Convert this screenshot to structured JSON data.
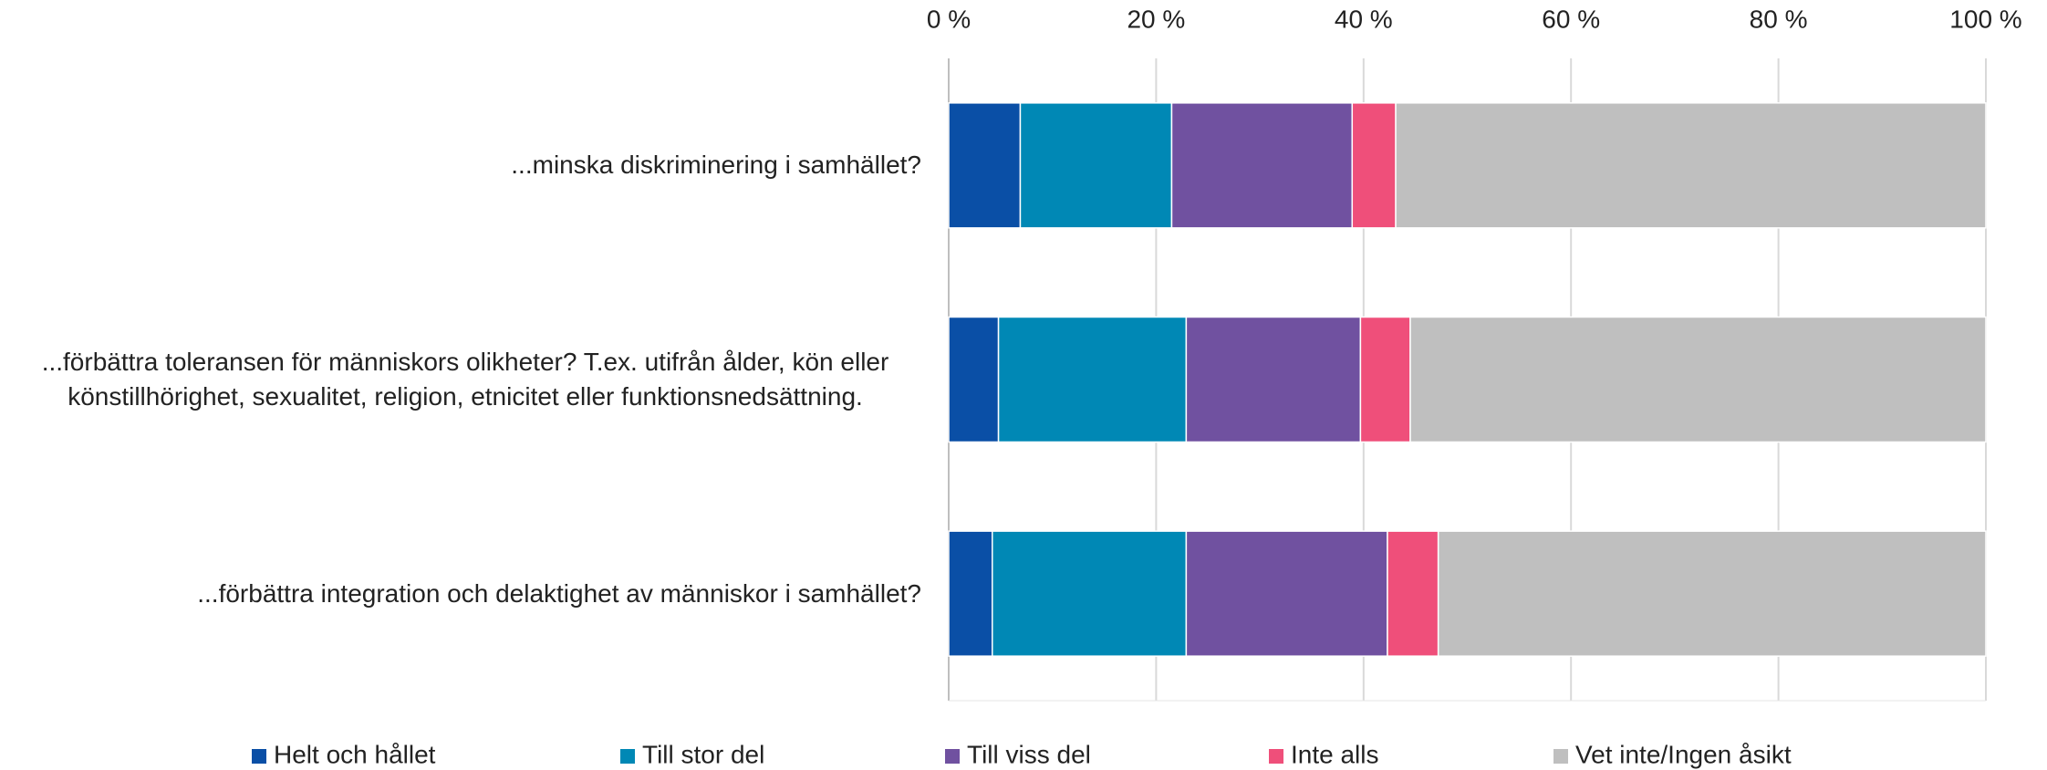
{
  "chart_data": {
    "type": "stacked-barh",
    "categories": [
      "...minska diskriminering i samhället?",
      "...förbättra toleransen för människors olikheter? T.ex. utifrån ålder, kön eller könstillhörighet, sexualitet, religion, etnicitet eller funktionsnedsättning.",
      "...förbättra integration och delaktighet av människor i samhället?"
    ],
    "series": [
      {
        "name": "Helt och hållet",
        "color": "#0a4fa6",
        "values": [
          6.9,
          4.8,
          4.2
        ]
      },
      {
        "name": "Till stor del",
        "color": "#0088b5",
        "values": [
          14.6,
          18.1,
          18.7
        ]
      },
      {
        "name": "Till viss del",
        "color": "#7051a0",
        "values": [
          17.4,
          16.8,
          19.4
        ]
      },
      {
        "name": "Inte alls",
        "color": "#ef4f7a",
        "values": [
          4.2,
          4.8,
          4.9
        ]
      },
      {
        "name": "Vet inte/Ingen åsikt",
        "color": "#bfbfbf",
        "values": [
          56.9,
          55.5,
          52.8
        ]
      }
    ],
    "xlim": [
      0,
      100
    ],
    "xticks": [
      {
        "value": 0,
        "label": "0 %"
      },
      {
        "value": 20,
        "label": "20 %"
      },
      {
        "value": 40,
        "label": "40 %"
      },
      {
        "value": 60,
        "label": "60 %"
      },
      {
        "value": 80,
        "label": "80 %"
      },
      {
        "value": 100,
        "label": "100 %"
      }
    ],
    "grid": true,
    "legend": "bottom"
  }
}
